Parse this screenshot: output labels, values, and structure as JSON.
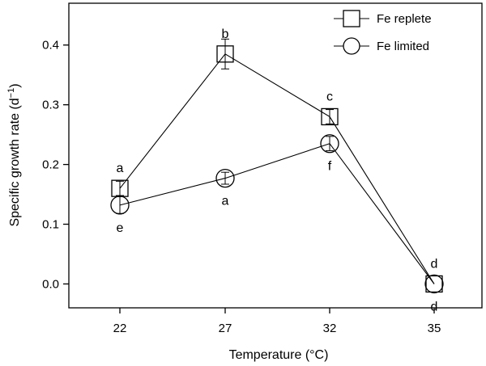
{
  "chart_data": {
    "type": "line",
    "xlabel": "Temperature (°C)",
    "ylabel": "Specific growth rate (d",
    "ylabel_sup": "−1",
    "ylabel_close": ")",
    "categories": [
      "22",
      "27",
      "32",
      "35"
    ],
    "ylim": [
      -0.04,
      0.47
    ],
    "yticks": [
      0.0,
      0.1,
      0.2,
      0.3,
      0.4
    ],
    "ytick_labels": [
      "0.0",
      "0.1",
      "0.2",
      "0.3",
      "0.4"
    ],
    "grid": false,
    "legend": "top-right",
    "series": [
      {
        "name": "Fe replete",
        "marker": "square",
        "values": [
          0.16,
          0.385,
          0.28,
          0.0
        ],
        "errors": [
          0.012,
          0.025,
          0.012,
          0.0
        ],
        "letters": [
          "a",
          "b",
          "c",
          "d"
        ],
        "letter_pos": [
          "above",
          "above",
          "above",
          "above"
        ]
      },
      {
        "name": "Fe limited",
        "marker": "circle",
        "values": [
          0.132,
          0.177,
          0.235,
          0.0
        ],
        "errors": [
          0.014,
          0.01,
          0.012,
          0.0
        ],
        "letters": [
          "e",
          "a",
          "f",
          "d"
        ],
        "letter_pos": [
          "below",
          "below",
          "below",
          "below"
        ]
      }
    ]
  }
}
